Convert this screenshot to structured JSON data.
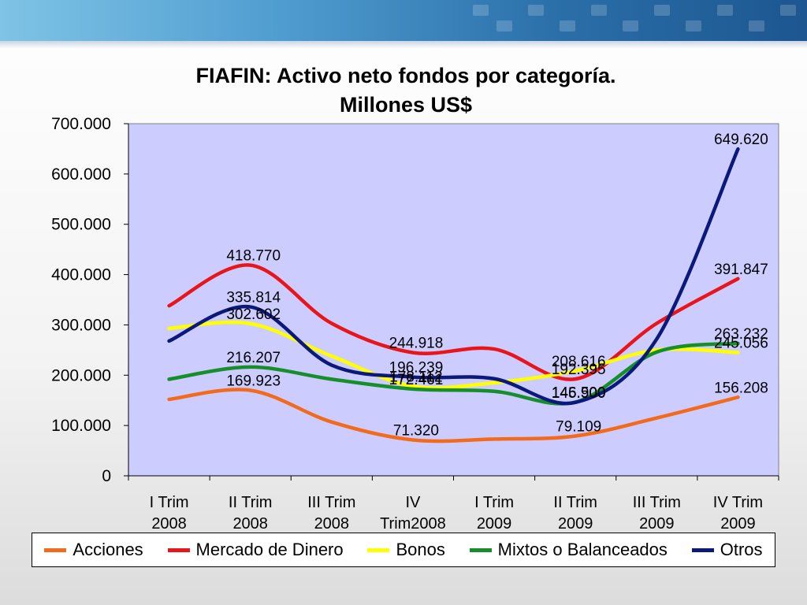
{
  "colors": {
    "plot_bg": "#CCCCFF",
    "grid": "#000000"
  },
  "chart_data": {
    "type": "line",
    "title": "FIAFIN: Activo neto fondos por categoría.",
    "subtitle": "Millones US$",
    "xlabel": "",
    "ylabel": "",
    "ylim": [
      0,
      700000
    ],
    "y_ticks": [
      0,
      100000,
      200000,
      300000,
      400000,
      500000,
      600000,
      700000
    ],
    "y_tick_labels": [
      "0",
      "100.000",
      "200.000",
      "300.000",
      "400.000",
      "500.000",
      "600.000",
      "700.000"
    ],
    "categories": [
      [
        "I Trim",
        "2008"
      ],
      [
        "II Trim",
        "2008"
      ],
      [
        "III Trim",
        "2008"
      ],
      [
        "IV",
        "Trim2008"
      ],
      [
        "I Trim",
        "2009"
      ],
      [
        "II Trim",
        "2009"
      ],
      [
        "III Trim",
        "2009"
      ],
      [
        "IV Trim",
        "2009"
      ]
    ],
    "legend_position": "bottom",
    "smooth": true,
    "series": [
      {
        "name": "Acciones",
        "color": "#F26B1D",
        "values": [
          152000,
          169923,
          107000,
          71320,
          73000,
          79109,
          115000,
          156208
        ],
        "labels": [
          {
            "index": 1,
            "text": "169.923"
          },
          {
            "index": 3,
            "text": "71.320"
          },
          {
            "index": 5,
            "text": "79.109"
          },
          {
            "index": 7,
            "text": "156.208"
          }
        ]
      },
      {
        "name": "Mercado de Dinero",
        "color": "#E8161B",
        "values": [
          338000,
          418770,
          303000,
          244918,
          252000,
          192395,
          303000,
          391847
        ],
        "labels": [
          {
            "index": 1,
            "text": "418.770"
          },
          {
            "index": 3,
            "text": "244.918"
          },
          {
            "index": 5,
            "text": "192.395"
          },
          {
            "index": 7,
            "text": "391.847"
          }
        ]
      },
      {
        "name": "Bonos",
        "color": "#FFFF00",
        "values": [
          293000,
          302602,
          238000,
          178112,
          185000,
          208616,
          250000,
          245056
        ],
        "labels": [
          {
            "index": 1,
            "text": "302.602"
          },
          {
            "index": 3,
            "text": "178.112"
          },
          {
            "index": 5,
            "text": "208.616"
          },
          {
            "index": 7,
            "text": "245.056"
          }
        ]
      },
      {
        "name": "Mixtos o Balanceados",
        "color": "#168F2B",
        "values": [
          192000,
          216207,
          192000,
          172461,
          168000,
          146500,
          246000,
          263232
        ],
        "labels": [
          {
            "index": 1,
            "text": "216.207"
          },
          {
            "index": 3,
            "text": "172.461"
          },
          {
            "index": 5,
            "text": "146.500"
          },
          {
            "index": 7,
            "text": "263.232"
          }
        ]
      },
      {
        "name": "Otros",
        "color": "#0B1A7A",
        "values": [
          268000,
          335814,
          220000,
          196239,
          193000,
          145900,
          272000,
          649620
        ],
        "labels": [
          {
            "index": 1,
            "text": "335.814"
          },
          {
            "index": 3,
            "text": "196.239"
          },
          {
            "index": 5,
            "text": "145.900"
          },
          {
            "index": 7,
            "text": "649.620"
          }
        ]
      }
    ]
  }
}
